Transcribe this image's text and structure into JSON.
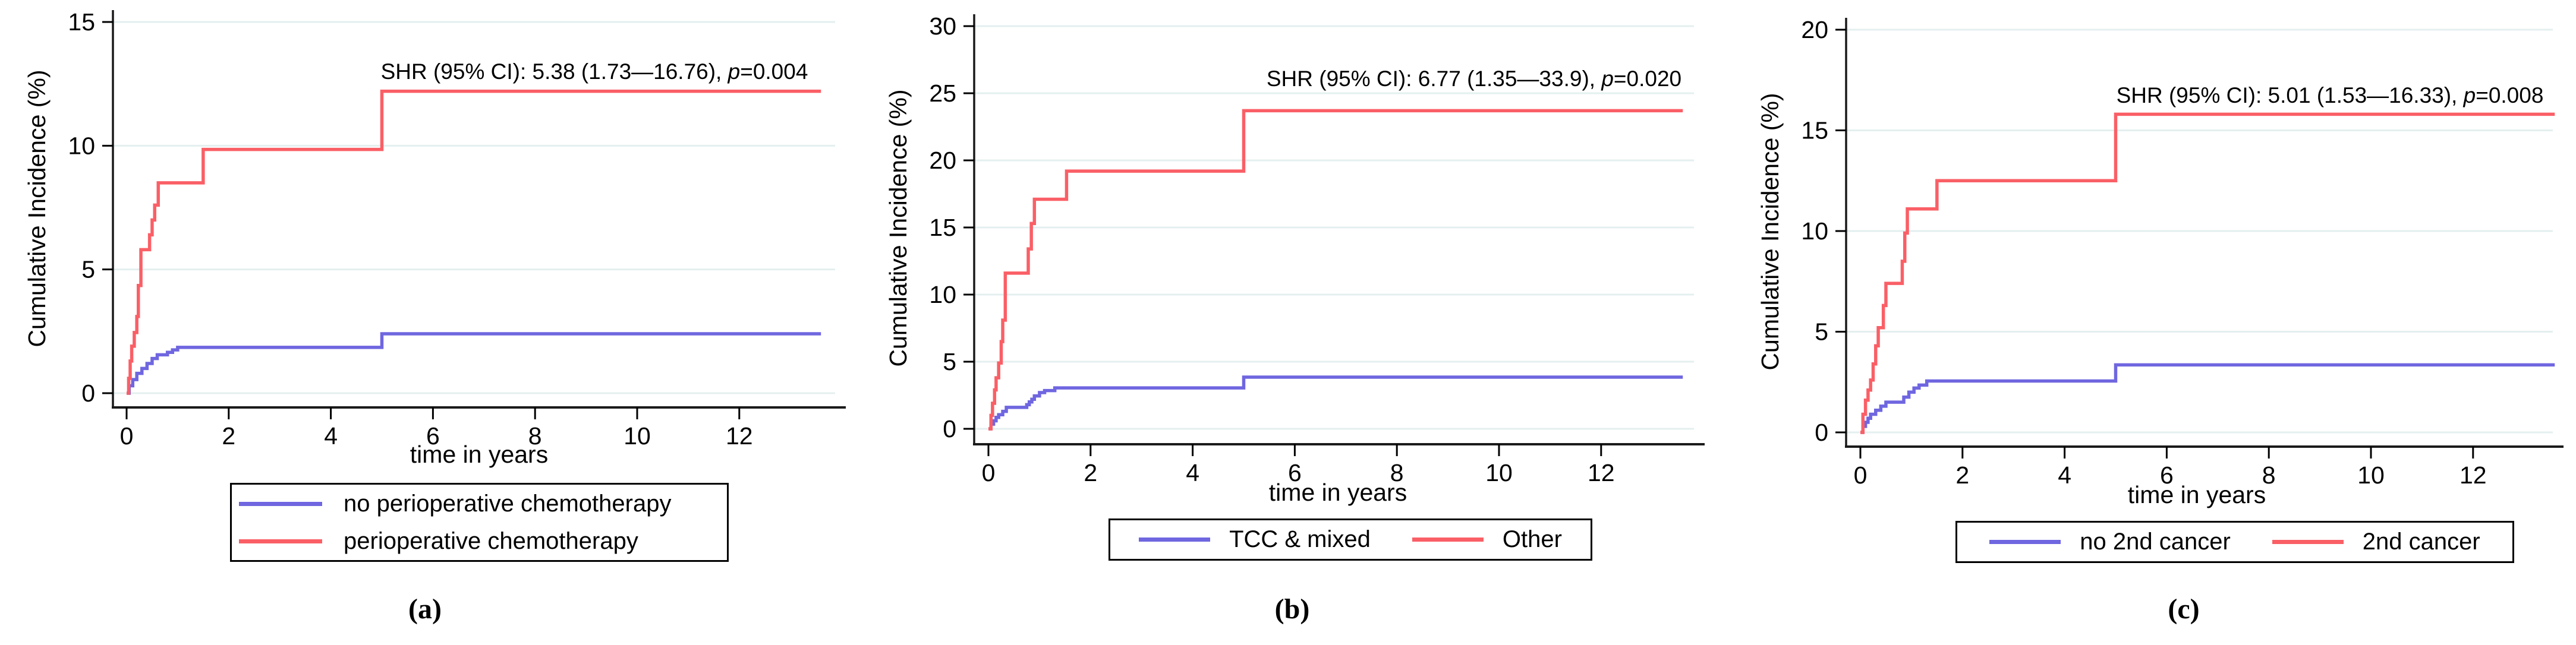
{
  "colors": {
    "blue": "#6f66e0",
    "red": "#fa5f66",
    "grid": "#e4efef",
    "axis": "#1a1a1a",
    "text": "#000000",
    "background": "#ffffff"
  },
  "chart_data": [
    {
      "type": "line",
      "panel": "a",
      "caption": "(a)",
      "ylabel": "Cumulative Incidence (%)",
      "xlabel": "time in years",
      "ylim": [
        0,
        15
      ],
      "yticks": [
        0,
        5,
        10,
        15
      ],
      "xlim": [
        0,
        14
      ],
      "xticks": [
        0,
        2,
        4,
        6,
        8,
        10,
        12
      ],
      "grid": true,
      "legend_position": "below",
      "end_time": 13.6,
      "annotation": {
        "prefix": "SHR (95% CI): 5.38 (1.73—16.76), ",
        "italic": "p",
        "suffix": "=0.004"
      },
      "legend": {
        "rows": 2,
        "entries": [
          {
            "label": "no perioperative chemotherapy",
            "color": "#6f66e0"
          },
          {
            "label": "perioperative chemotherapy",
            "color": "#fa5f66"
          }
        ]
      },
      "series": [
        {
          "name": "no perioperative chemotherapy",
          "color": "#6f66e0",
          "steps": [
            [
              0.05,
              0.3
            ],
            [
              0.12,
              0.55
            ],
            [
              0.2,
              0.8
            ],
            [
              0.3,
              1.0
            ],
            [
              0.4,
              1.2
            ],
            [
              0.5,
              1.4
            ],
            [
              0.6,
              1.55
            ],
            [
              0.8,
              1.65
            ],
            [
              0.9,
              1.75
            ],
            [
              1.0,
              1.85
            ],
            [
              5.0,
              2.4
            ]
          ]
        },
        {
          "name": "perioperative chemotherapy",
          "color": "#fa5f66",
          "steps": [
            [
              0.04,
              0.6
            ],
            [
              0.07,
              1.3
            ],
            [
              0.1,
              1.9
            ],
            [
              0.15,
              2.45
            ],
            [
              0.2,
              3.1
            ],
            [
              0.23,
              4.35
            ],
            [
              0.28,
              5.8
            ],
            [
              0.45,
              6.4
            ],
            [
              0.5,
              7.0
            ],
            [
              0.55,
              7.6
            ],
            [
              0.62,
              8.5
            ],
            [
              1.5,
              9.85
            ],
            [
              5.0,
              12.2
            ]
          ]
        }
      ]
    },
    {
      "type": "line",
      "panel": "b",
      "caption": "(b)",
      "ylabel": "Cumulative Incidence (%)",
      "xlabel": "time in years",
      "ylim": [
        0,
        30
      ],
      "yticks": [
        0,
        5,
        10,
        15,
        20,
        25,
        30
      ],
      "xlim": [
        0,
        14
      ],
      "xticks": [
        0,
        2,
        4,
        6,
        8,
        10,
        12
      ],
      "grid": true,
      "legend_position": "below",
      "end_time": 13.6,
      "annotation": {
        "prefix": "SHR (95% CI): 6.77 (1.35—33.9), ",
        "italic": "p",
        "suffix": "=0.020"
      },
      "legend": {
        "rows": 1,
        "entries": [
          {
            "label": "TCC & mixed",
            "color": "#6f66e0"
          },
          {
            "label": "Other",
            "color": "#fa5f66"
          }
        ]
      },
      "series": [
        {
          "name": "TCC & mixed",
          "color": "#6f66e0",
          "steps": [
            [
              0.05,
              0.35
            ],
            [
              0.1,
              0.6
            ],
            [
              0.15,
              0.85
            ],
            [
              0.2,
              1.05
            ],
            [
              0.28,
              1.3
            ],
            [
              0.35,
              1.6
            ],
            [
              0.75,
              1.8
            ],
            [
              0.8,
              2.0
            ],
            [
              0.85,
              2.2
            ],
            [
              0.9,
              2.45
            ],
            [
              1.0,
              2.7
            ],
            [
              1.1,
              2.85
            ],
            [
              1.3,
              3.05
            ],
            [
              5.0,
              3.85
            ]
          ]
        },
        {
          "name": "Other",
          "color": "#fa5f66",
          "steps": [
            [
              0.05,
              1.0
            ],
            [
              0.08,
              1.9
            ],
            [
              0.12,
              2.9
            ],
            [
              0.15,
              3.8
            ],
            [
              0.2,
              4.9
            ],
            [
              0.25,
              6.5
            ],
            [
              0.28,
              8.1
            ],
            [
              0.33,
              11.6
            ],
            [
              0.78,
              13.4
            ],
            [
              0.84,
              15.3
            ],
            [
              0.9,
              17.1
            ],
            [
              1.53,
              19.2
            ],
            [
              5.0,
              23.7
            ]
          ]
        }
      ]
    },
    {
      "type": "line",
      "panel": "c",
      "caption": "(c)",
      "ylabel": "Cumulative Incidence (%)",
      "xlabel": "time in years",
      "ylim": [
        0,
        20
      ],
      "yticks": [
        0,
        5,
        10,
        15,
        20
      ],
      "xlim": [
        0,
        14
      ],
      "xticks": [
        0,
        2,
        4,
        6,
        8,
        10,
        12
      ],
      "grid": true,
      "legend_position": "below",
      "end_time": 13.6,
      "annotation": {
        "prefix": "SHR (95% CI): 5.01 (1.53—16.33), ",
        "italic": "p",
        "suffix": "=0.008"
      },
      "legend": {
        "rows": 1,
        "entries": [
          {
            "label": "no 2nd cancer",
            "color": "#6f66e0"
          },
          {
            "label": "2nd cancer",
            "color": "#fa5f66"
          }
        ]
      },
      "series": [
        {
          "name": "no 2nd cancer",
          "color": "#6f66e0",
          "steps": [
            [
              0.05,
              0.3
            ],
            [
              0.1,
              0.5
            ],
            [
              0.15,
              0.7
            ],
            [
              0.2,
              0.9
            ],
            [
              0.3,
              1.1
            ],
            [
              0.4,
              1.3
            ],
            [
              0.5,
              1.5
            ],
            [
              0.85,
              1.75
            ],
            [
              0.95,
              2.0
            ],
            [
              1.05,
              2.2
            ],
            [
              1.15,
              2.35
            ],
            [
              1.3,
              2.55
            ],
            [
              5.0,
              3.35
            ]
          ]
        },
        {
          "name": "2nd cancer",
          "color": "#fa5f66",
          "steps": [
            [
              0.05,
              0.9
            ],
            [
              0.1,
              1.6
            ],
            [
              0.15,
              2.1
            ],
            [
              0.2,
              2.6
            ],
            [
              0.25,
              3.4
            ],
            [
              0.3,
              4.3
            ],
            [
              0.35,
              5.2
            ],
            [
              0.45,
              6.3
            ],
            [
              0.5,
              7.4
            ],
            [
              0.82,
              8.5
            ],
            [
              0.87,
              9.9
            ],
            [
              0.92,
              11.1
            ],
            [
              1.5,
              12.5
            ],
            [
              5.0,
              15.8
            ]
          ]
        }
      ]
    }
  ]
}
